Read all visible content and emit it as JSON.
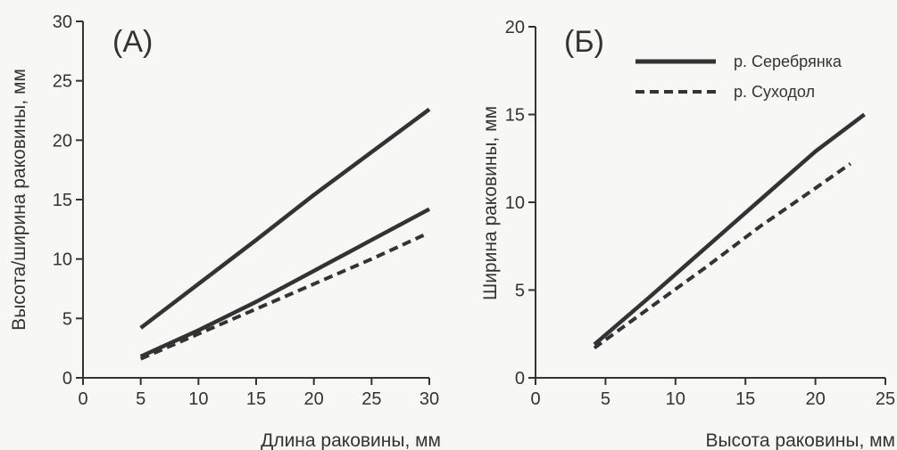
{
  "chart_data": [
    {
      "type": "line",
      "panel_label": "(A)",
      "xlabel": "Длина раковины, мм",
      "ylabel": "Высота/ширина раковины, мм",
      "xlim": [
        0,
        30
      ],
      "ylim": [
        0,
        30
      ],
      "xticks": [
        0,
        5,
        10,
        15,
        20,
        25,
        30
      ],
      "yticks": [
        0,
        5,
        10,
        15,
        20,
        25,
        30
      ],
      "grid": false,
      "series": [
        {
          "style": "solid",
          "color": "#333333",
          "x": [
            5,
            10,
            15,
            20,
            25,
            30
          ],
          "y": [
            4.2,
            7.9,
            11.6,
            15.4,
            19.0,
            22.6
          ]
        },
        {
          "style": "solid",
          "color": "#333333",
          "x": [
            5,
            10,
            15,
            20,
            25,
            30
          ],
          "y": [
            1.8,
            4.0,
            6.4,
            9.0,
            11.6,
            14.2
          ]
        },
        {
          "style": "dashed",
          "color": "#333333",
          "x": [
            5,
            10,
            15,
            20,
            25,
            29.5
          ],
          "y": [
            1.6,
            3.7,
            5.8,
            7.9,
            10.0,
            12.0
          ]
        }
      ]
    },
    {
      "type": "line",
      "panel_label": "(Б)",
      "xlabel": "Высота раковины, мм",
      "ylabel": "Ширина раковины, мм",
      "xlim": [
        0,
        25
      ],
      "ylim": [
        0,
        20
      ],
      "xticks": [
        0,
        5,
        10,
        15,
        20,
        25
      ],
      "yticks": [
        0,
        5,
        10,
        15,
        20
      ],
      "grid": false,
      "legend_position": "top-right",
      "series": [
        {
          "name": "р. Серебрянка",
          "style": "solid",
          "color": "#333333",
          "x": [
            4.2,
            8,
            12,
            16,
            20,
            23.5
          ],
          "y": [
            1.9,
            4.5,
            7.3,
            10.1,
            12.9,
            15.0
          ]
        },
        {
          "name": "р. Суходол",
          "style": "dashed",
          "color": "#333333",
          "x": [
            4.2,
            8,
            12,
            16,
            20,
            22.5
          ],
          "y": [
            1.7,
            3.9,
            6.2,
            8.6,
            10.8,
            12.2
          ]
        }
      ]
    }
  ]
}
